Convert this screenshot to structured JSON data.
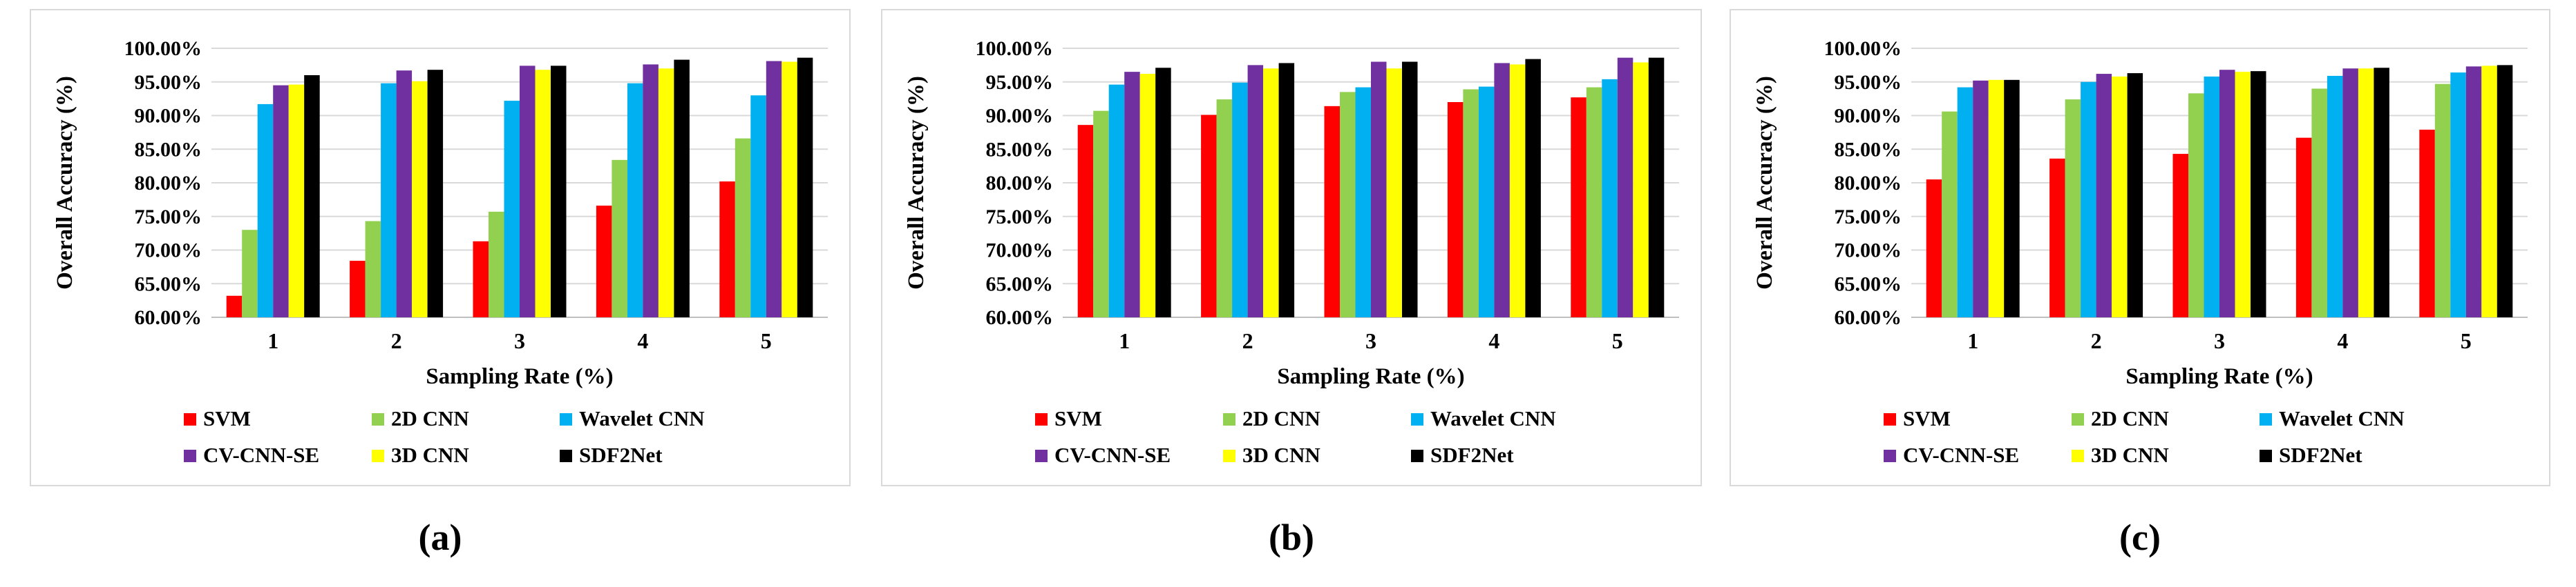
{
  "chart_data": [
    {
      "type": "bar",
      "panel_label": "(a)",
      "categories": [
        "1",
        "2",
        "3",
        "4",
        "5"
      ],
      "xlabel": "Sampling Rate (%)",
      "ylabel": "Overall Accuracy (%)",
      "ylim": [
        60,
        100
      ],
      "yticks": [
        "60.00%",
        "65.00%",
        "70.00%",
        "75.00%",
        "80.00%",
        "85.00%",
        "90.00%",
        "95.00%",
        "100.00%"
      ],
      "grid": true,
      "legend_position": "bottom",
      "series": [
        {
          "name": "SVM",
          "color": "#ff0000",
          "values": [
            63.2,
            68.4,
            71.3,
            76.6,
            80.2
          ]
        },
        {
          "name": "2D CNN",
          "color": "#92d050",
          "values": [
            73.0,
            74.3,
            75.7,
            83.4,
            86.6
          ]
        },
        {
          "name": "Wavelet CNN",
          "color": "#00b0f0",
          "values": [
            91.7,
            94.8,
            92.2,
            94.8,
            93.0
          ]
        },
        {
          "name": "CV-CNN-SE",
          "color": "#7030a0",
          "values": [
            94.5,
            96.7,
            97.4,
            97.6,
            98.1
          ]
        },
        {
          "name": "3D CNN",
          "color": "#ffff00",
          "values": [
            94.6,
            95.1,
            96.8,
            97.0,
            98.0
          ]
        },
        {
          "name": "SDF2Net",
          "color": "#000000",
          "values": [
            96.0,
            96.8,
            97.4,
            98.3,
            98.6
          ]
        }
      ]
    },
    {
      "type": "bar",
      "panel_label": "(b)",
      "categories": [
        "1",
        "2",
        "3",
        "4",
        "5"
      ],
      "xlabel": "Sampling Rate (%)",
      "ylabel": "Overall Accuracy (%)",
      "ylim": [
        60,
        100
      ],
      "yticks": [
        "60.00%",
        "65.00%",
        "70.00%",
        "75.00%",
        "80.00%",
        "85.00%",
        "90.00%",
        "95.00%",
        "100.00%"
      ],
      "grid": true,
      "legend_position": "bottom",
      "series": [
        {
          "name": "SVM",
          "color": "#ff0000",
          "values": [
            88.6,
            90.1,
            91.4,
            92.0,
            92.7
          ]
        },
        {
          "name": "2D CNN",
          "color": "#92d050",
          "values": [
            90.7,
            92.4,
            93.5,
            93.9,
            94.2
          ]
        },
        {
          "name": "Wavelet CNN",
          "color": "#00b0f0",
          "values": [
            94.6,
            94.9,
            94.2,
            94.3,
            95.4
          ]
        },
        {
          "name": "CV-CNN-SE",
          "color": "#7030a0",
          "values": [
            96.5,
            97.5,
            98.0,
            97.8,
            98.6
          ]
        },
        {
          "name": "3D CNN",
          "color": "#ffff00",
          "values": [
            96.2,
            97.0,
            97.0,
            97.6,
            97.9
          ]
        },
        {
          "name": "SDF2Net",
          "color": "#000000",
          "values": [
            97.1,
            97.8,
            98.0,
            98.4,
            98.6
          ]
        }
      ]
    },
    {
      "type": "bar",
      "panel_label": "(c)",
      "categories": [
        "1",
        "2",
        "3",
        "4",
        "5"
      ],
      "xlabel": "Sampling Rate (%)",
      "ylabel": "Overall Accuracy (%)",
      "ylim": [
        60,
        100
      ],
      "yticks": [
        "60.00%",
        "65.00%",
        "70.00%",
        "75.00%",
        "80.00%",
        "85.00%",
        "90.00%",
        "95.00%",
        "100.00%"
      ],
      "grid": true,
      "legend_position": "bottom",
      "series": [
        {
          "name": "SVM",
          "color": "#ff0000",
          "values": [
            80.5,
            83.6,
            84.3,
            86.7,
            87.9
          ]
        },
        {
          "name": "2D CNN",
          "color": "#92d050",
          "values": [
            90.6,
            92.4,
            93.3,
            94.0,
            94.7
          ]
        },
        {
          "name": "Wavelet CNN",
          "color": "#00b0f0",
          "values": [
            94.2,
            95.0,
            95.8,
            95.9,
            96.4
          ]
        },
        {
          "name": "CV-CNN-SE",
          "color": "#7030a0",
          "values": [
            95.2,
            96.2,
            96.8,
            97.0,
            97.3
          ]
        },
        {
          "name": "3D CNN",
          "color": "#ffff00",
          "values": [
            95.3,
            95.8,
            96.5,
            97.0,
            97.4
          ]
        },
        {
          "name": "SDF2Net",
          "color": "#000000",
          "values": [
            95.3,
            96.3,
            96.6,
            97.1,
            97.5
          ]
        }
      ]
    }
  ]
}
